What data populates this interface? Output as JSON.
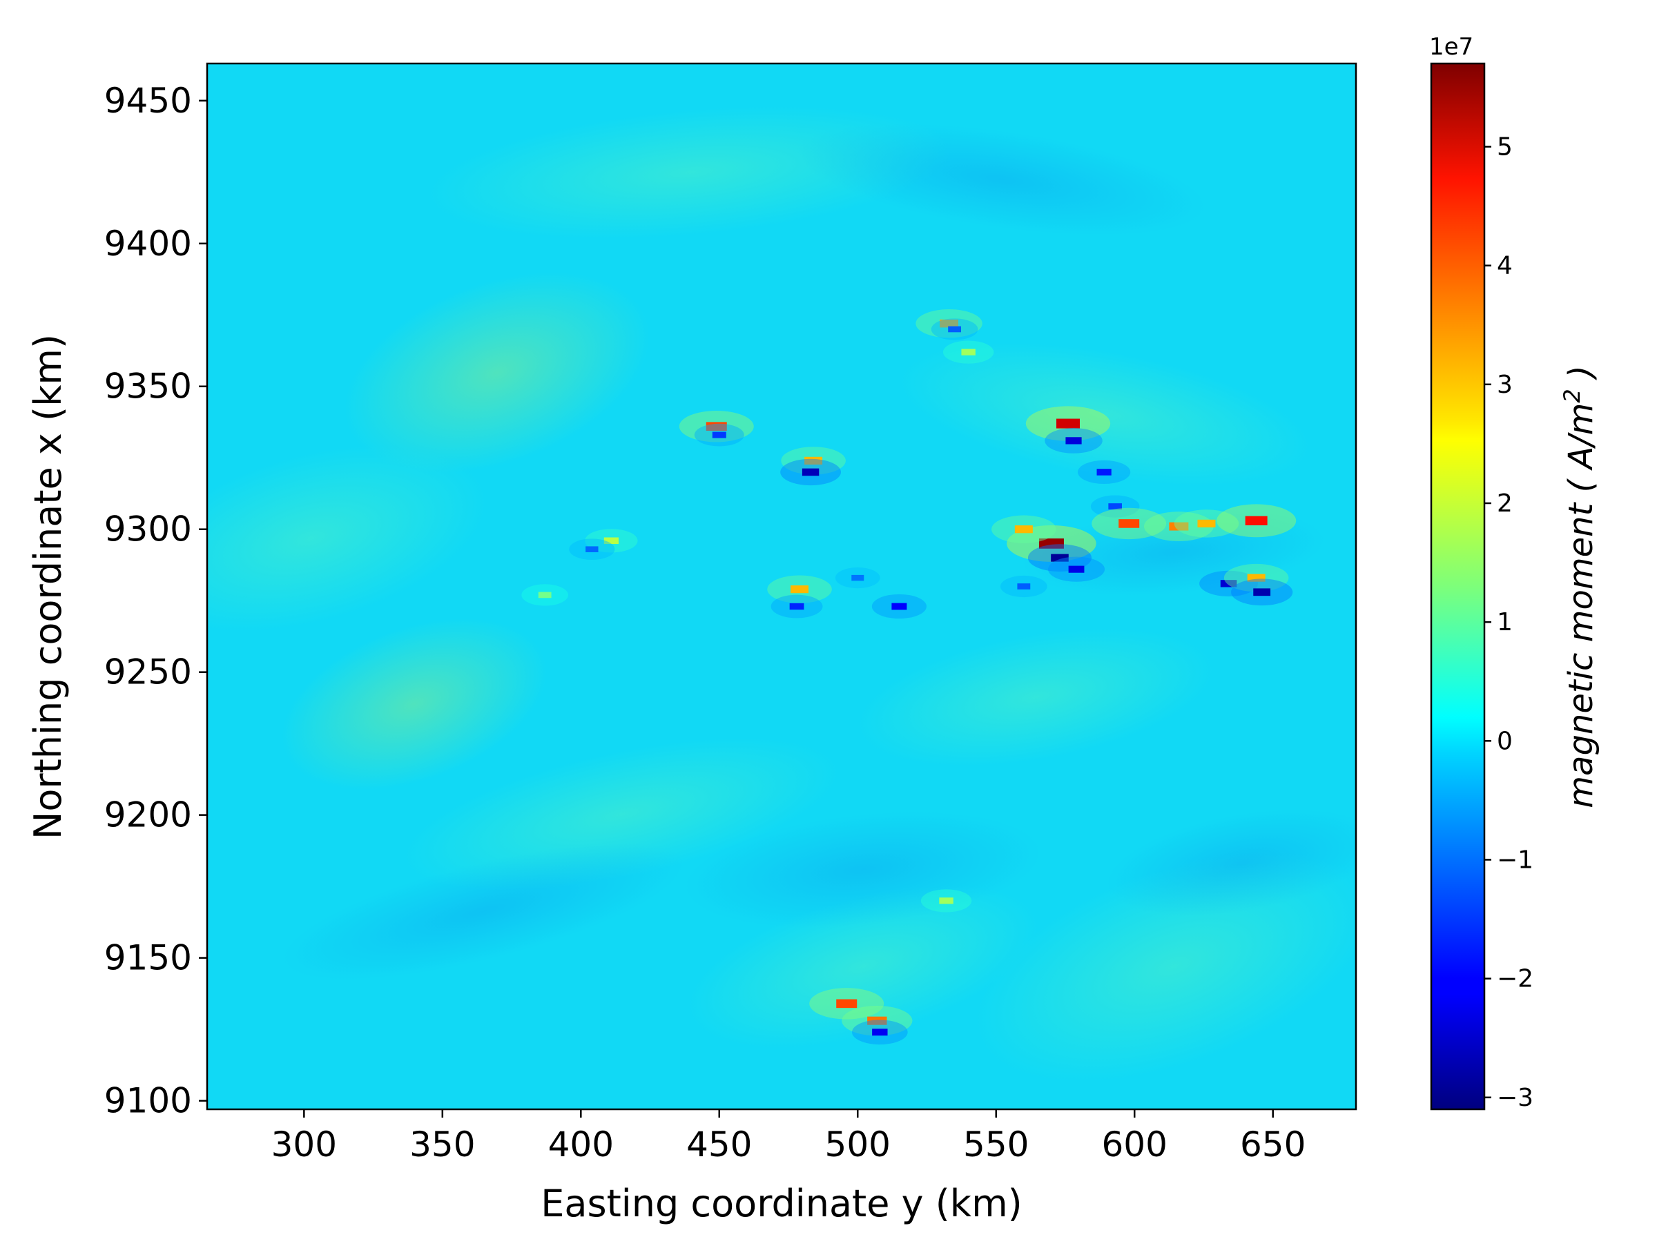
{
  "chart_data": {
    "type": "heatmap",
    "title": "",
    "xlabel": "Easting coordinate y (km)",
    "ylabel": "Northing coordinate x (km)",
    "xlim": [
      265,
      680
    ],
    "ylim": [
      9097,
      9463
    ],
    "x_ticks": [
      300,
      350,
      400,
      450,
      500,
      550,
      600,
      650
    ],
    "y_ticks": [
      9100,
      9150,
      9200,
      9250,
      9300,
      9350,
      9400,
      9450
    ],
    "x_tick_labels": [
      "300",
      "350",
      "400",
      "450",
      "500",
      "550",
      "600",
      "650"
    ],
    "y_tick_labels": [
      "9100",
      "9150",
      "9200",
      "9250",
      "9300",
      "9350",
      "9400",
      "9450"
    ],
    "colormap": "jet",
    "colorbar": {
      "label": "magnetic moment ( A/m² )",
      "label_parts": {
        "pre": "magnetic moment ( A/m",
        "sup": "2",
        "post": " )"
      },
      "exponent_label": "1e7",
      "vmin": -3.1,
      "vmax": 5.7,
      "ticks": [
        -3,
        -2,
        -1,
        0,
        1,
        2,
        3,
        4,
        5
      ],
      "tick_labels": [
        "−3",
        "−2",
        "−1",
        "0",
        "1",
        "2",
        "3",
        "4",
        "5"
      ]
    },
    "background_value": -0.2,
    "grid": false,
    "anomalies": [
      {
        "y": 533,
        "x": 9372,
        "v": 3.2
      },
      {
        "y": 535,
        "x": 9370,
        "v": -1.2
      },
      {
        "y": 540,
        "x": 9362,
        "v": 1.6
      },
      {
        "y": 449,
        "x": 9336,
        "v": 4.0
      },
      {
        "y": 450,
        "x": 9333,
        "v": -1.5
      },
      {
        "y": 484,
        "x": 9324,
        "v": 3.0
      },
      {
        "y": 483,
        "x": 9320,
        "v": -2.6
      },
      {
        "y": 576,
        "x": 9337,
        "v": 5.0
      },
      {
        "y": 578,
        "x": 9331,
        "v": -2.3
      },
      {
        "y": 589,
        "x": 9320,
        "v": -1.8
      },
      {
        "y": 593,
        "x": 9308,
        "v": -1.4
      },
      {
        "y": 570,
        "x": 9295,
        "v": 5.5
      },
      {
        "y": 573,
        "x": 9290,
        "v": -2.9
      },
      {
        "y": 579,
        "x": 9286,
        "v": -2.2
      },
      {
        "y": 560,
        "x": 9300,
        "v": 3.0
      },
      {
        "y": 598,
        "x": 9302,
        "v": 4.0
      },
      {
        "y": 616,
        "x": 9301,
        "v": 3.5
      },
      {
        "y": 626,
        "x": 9302,
        "v": 3.0
      },
      {
        "y": 644,
        "x": 9303,
        "v": 4.5
      },
      {
        "y": 634,
        "x": 9281,
        "v": -2.4
      },
      {
        "y": 644,
        "x": 9283,
        "v": 3.0
      },
      {
        "y": 646,
        "x": 9278,
        "v": -2.7
      },
      {
        "y": 479,
        "x": 9279,
        "v": 3.0
      },
      {
        "y": 478,
        "x": 9273,
        "v": -1.7
      },
      {
        "y": 515,
        "x": 9273,
        "v": -2.0
      },
      {
        "y": 411,
        "x": 9296,
        "v": 1.8
      },
      {
        "y": 404,
        "x": 9293,
        "v": -1.1
      },
      {
        "y": 387,
        "x": 9277,
        "v": 1.2
      },
      {
        "y": 500,
        "x": 9283,
        "v": -1.0
      },
      {
        "y": 496,
        "x": 9134,
        "v": 4.0
      },
      {
        "y": 507,
        "x": 9128,
        "v": 3.6
      },
      {
        "y": 508,
        "x": 9124,
        "v": -2.1
      },
      {
        "y": 532,
        "x": 9170,
        "v": 1.6
      },
      {
        "y": 560,
        "x": 9280,
        "v": -1.2
      }
    ]
  }
}
